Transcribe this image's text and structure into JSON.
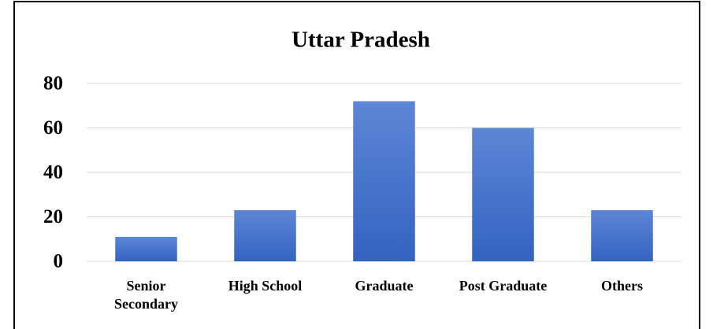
{
  "chart_data": {
    "type": "bar",
    "title": "Uttar Pradesh",
    "categories": [
      "Senior Secondary",
      "High School",
      "Graduate",
      "Post Graduate",
      "Others"
    ],
    "values": [
      11,
      23,
      72,
      60,
      23
    ],
    "color": "#4472c4",
    "ylim": [
      0,
      80
    ],
    "yticks": [
      0,
      20,
      40,
      60,
      80
    ],
    "grid": true
  }
}
